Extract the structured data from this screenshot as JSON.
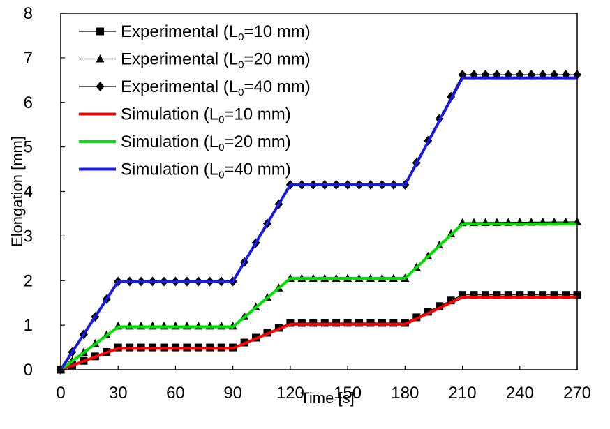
{
  "chart_data": {
    "type": "line",
    "xlabel": "Time [s]",
    "ylabel": "Elongation [mm]",
    "xlim": [
      0,
      270
    ],
    "ylim": [
      0,
      8
    ],
    "x_ticks": [
      0,
      30,
      60,
      90,
      120,
      150,
      180,
      210,
      240,
      270
    ],
    "y_ticks": [
      0,
      1,
      2,
      3,
      4,
      5,
      6,
      7,
      8
    ],
    "x_tick_labels": [
      "0",
      "30",
      "60",
      "90",
      "120",
      "150",
      "180",
      "210",
      "240",
      "270"
    ],
    "y_tick_labels": [
      "0",
      "1",
      "2",
      "3",
      "4",
      "5",
      "6",
      "7",
      "8"
    ],
    "grid": false,
    "legend_position": "top-left",
    "series": [
      {
        "legend_label": {
          "pre": "Experimental  (L",
          "sub": "0",
          "post": "=10 mm)"
        },
        "kind": "experimental",
        "marker": "square",
        "color": "#000000",
        "profile": [
          [
            0,
            0
          ],
          [
            30,
            0.5
          ],
          [
            90,
            0.5
          ],
          [
            120,
            1.05
          ],
          [
            180,
            1.05
          ],
          [
            210,
            1.68
          ],
          [
            270,
            1.68
          ]
        ]
      },
      {
        "legend_label": {
          "pre": "Experimental  (L",
          "sub": "0",
          "post": "=20 mm)"
        },
        "kind": "experimental",
        "marker": "triangle",
        "color": "#000000",
        "profile": [
          [
            0,
            0
          ],
          [
            30,
            0.98
          ],
          [
            90,
            0.98
          ],
          [
            120,
            2.05
          ],
          [
            180,
            2.05
          ],
          [
            210,
            3.3
          ],
          [
            270,
            3.32
          ]
        ]
      },
      {
        "legend_label": {
          "pre": "Experimental  (L",
          "sub": "0",
          "post": "=40 mm)"
        },
        "kind": "experimental",
        "marker": "diamond",
        "color": "#000000",
        "profile": [
          [
            0,
            0
          ],
          [
            30,
            1.98
          ],
          [
            90,
            1.98
          ],
          [
            120,
            4.15
          ],
          [
            180,
            4.15
          ],
          [
            210,
            6.62
          ],
          [
            270,
            6.62
          ]
        ]
      },
      {
        "legend_label": {
          "pre": "Simulation  (L",
          "sub": "0",
          "post": "=10 mm)"
        },
        "kind": "simulation",
        "color": "#ff0000",
        "points": [
          [
            0,
            0
          ],
          [
            30,
            0.48
          ],
          [
            90,
            0.48
          ],
          [
            120,
            1.02
          ],
          [
            180,
            1.02
          ],
          [
            210,
            1.63
          ],
          [
            270,
            1.63
          ]
        ]
      },
      {
        "legend_label": {
          "pre": "Simulation  (L",
          "sub": "0",
          "post": "=20 mm)"
        },
        "kind": "simulation",
        "color": "#00e000",
        "points": [
          [
            0,
            0
          ],
          [
            30,
            0.96
          ],
          [
            90,
            0.96
          ],
          [
            120,
            2.05
          ],
          [
            180,
            2.05
          ],
          [
            210,
            3.27
          ],
          [
            270,
            3.27
          ]
        ]
      },
      {
        "legend_label": {
          "pre": "Simulation  (L",
          "sub": "0",
          "post": "=40 mm)"
        },
        "kind": "simulation",
        "color": "#1a1ae0",
        "points": [
          [
            0,
            0
          ],
          [
            30,
            1.98
          ],
          [
            90,
            1.98
          ],
          [
            120,
            4.15
          ],
          [
            180,
            4.15
          ],
          [
            210,
            6.55
          ],
          [
            270,
            6.55
          ]
        ]
      }
    ],
    "marker_interval_s": 6
  }
}
